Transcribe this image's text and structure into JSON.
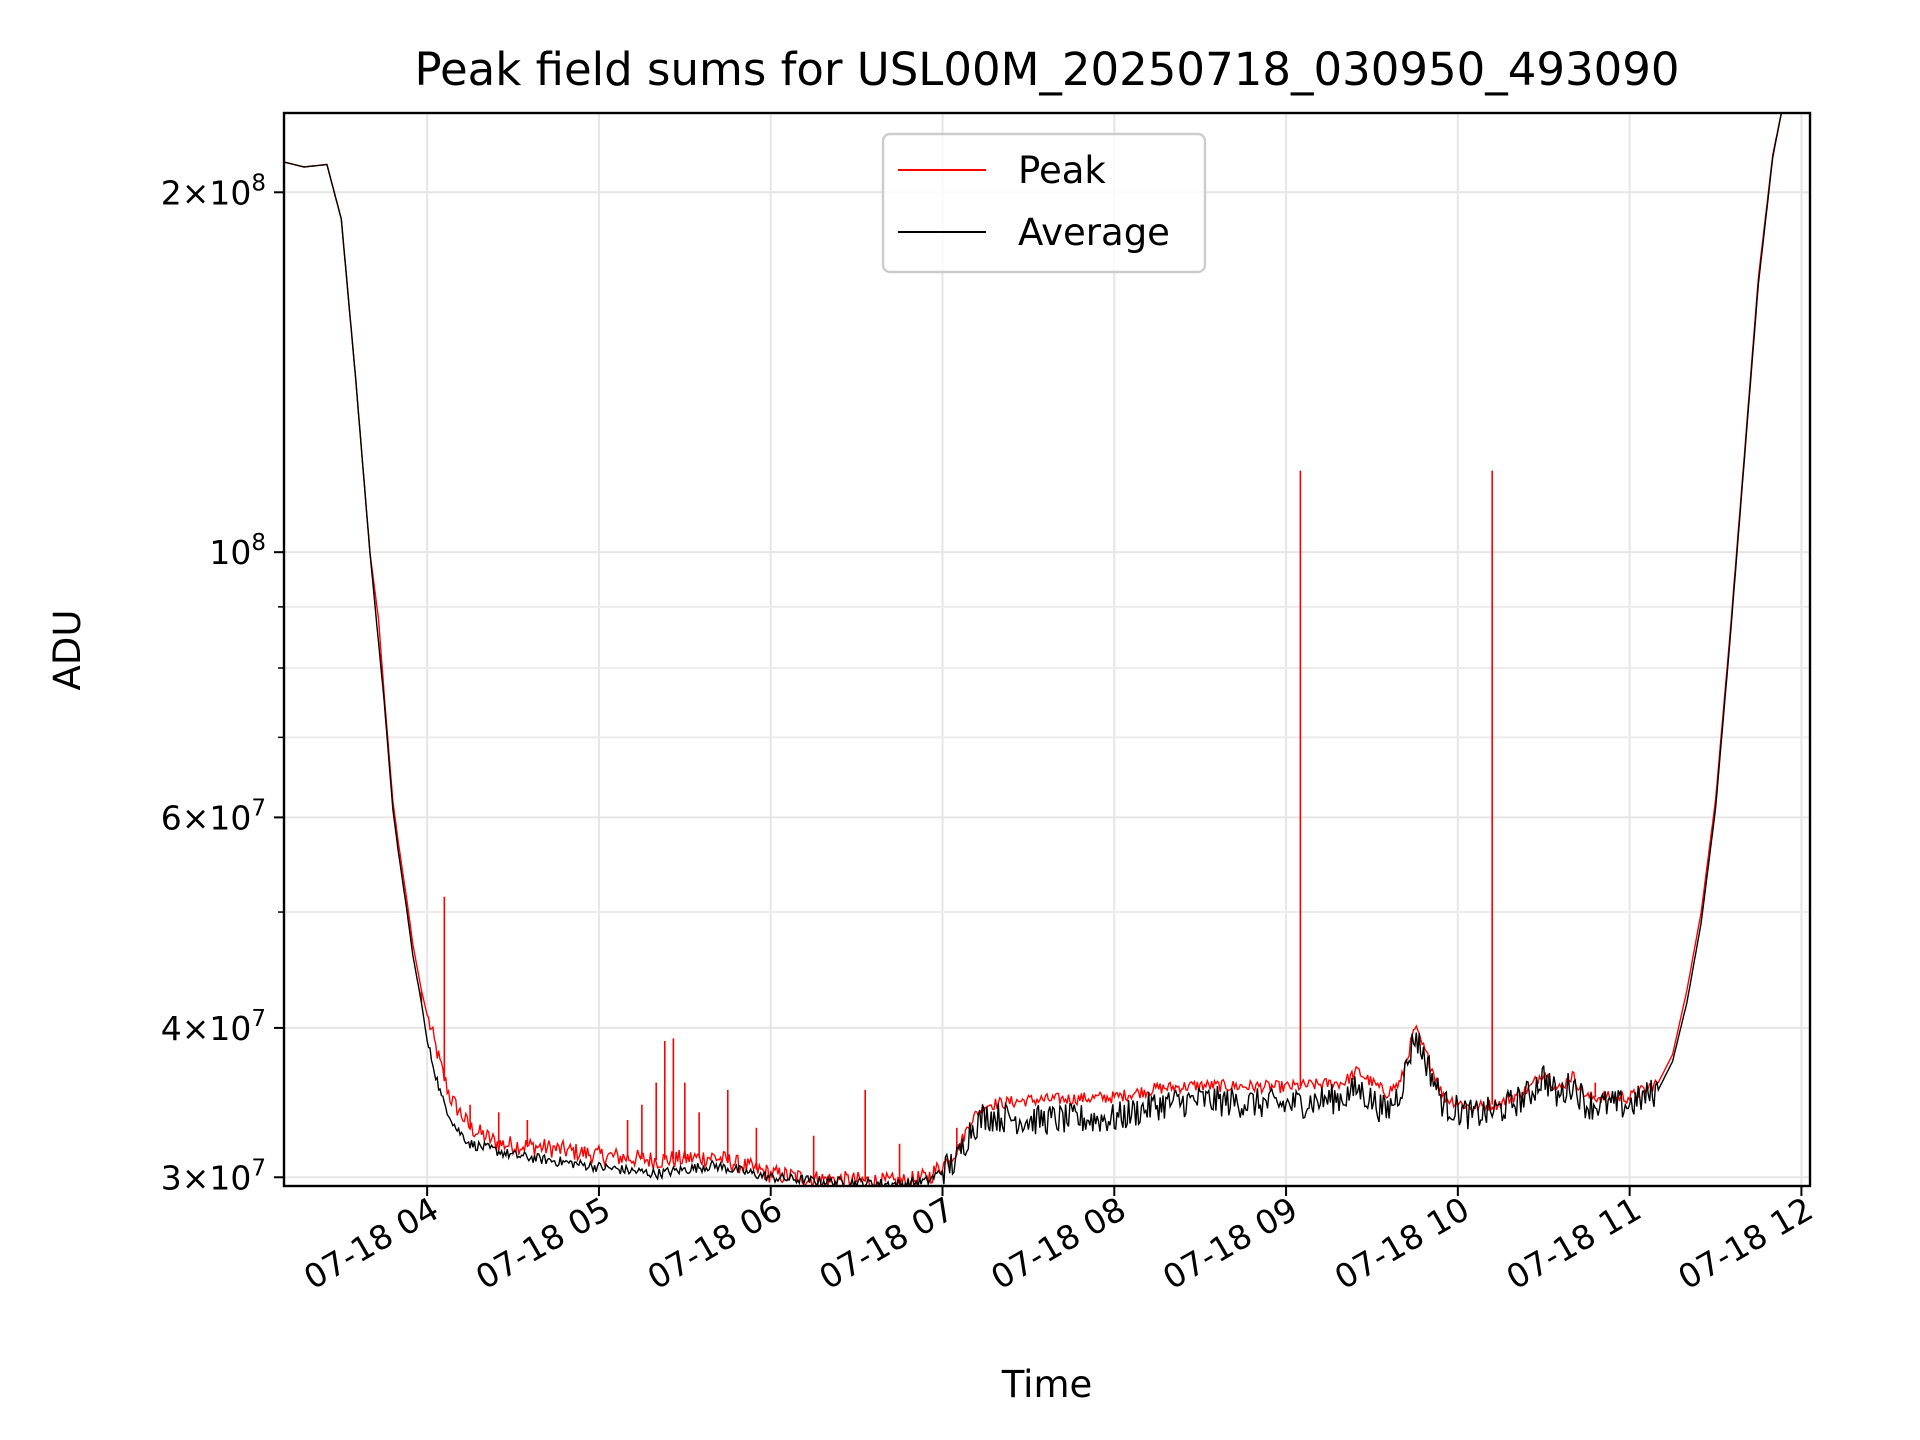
{
  "chart_data": {
    "type": "line",
    "title": "Peak field sums for USL00M_20250718_030950_493090",
    "xlabel": "Time",
    "ylabel": "ADU",
    "yscale": "log",
    "ylim": [
      29500000,
      233000000
    ],
    "xlim": [
      "2025-07-18T03:10",
      "2025-07-18T12:03"
    ],
    "grid": true,
    "legend": "upper center",
    "x_ticks": [
      {
        "value": "2025-07-18T04:00",
        "label": "07-18 04"
      },
      {
        "value": "2025-07-18T05:00",
        "label": "07-18 05"
      },
      {
        "value": "2025-07-18T06:00",
        "label": "07-18 06"
      },
      {
        "value": "2025-07-18T07:00",
        "label": "07-18 07"
      },
      {
        "value": "2025-07-18T08:00",
        "label": "07-18 08"
      },
      {
        "value": "2025-07-18T09:00",
        "label": "07-18 09"
      },
      {
        "value": "2025-07-18T10:00",
        "label": "07-18 10"
      },
      {
        "value": "2025-07-18T11:00",
        "label": "07-18 11"
      },
      {
        "value": "2025-07-18T12:00",
        "label": "07-18 12"
      }
    ],
    "y_ticks": [
      {
        "value": 30000000,
        "mant": "3",
        "exp": "7"
      },
      {
        "value": 40000000,
        "mant": "4",
        "exp": "7"
      },
      {
        "value": 60000000,
        "mant": "6",
        "exp": "7"
      },
      {
        "value": 100000000,
        "mant": "",
        "exp": "8"
      },
      {
        "value": 200000000,
        "mant": "2",
        "exp": "8"
      }
    ],
    "y_minor_ticks": [
      50000000,
      70000000,
      80000000,
      90000000
    ],
    "series": [
      {
        "name": "Peak",
        "color": "#ff0000",
        "points": [
          [
            "2025-07-18T03:10",
            212000000
          ],
          [
            "2025-07-18T03:17",
            210000000
          ],
          [
            "2025-07-18T03:25",
            211000000
          ],
          [
            "2025-07-18T03:30",
            190000000
          ],
          [
            "2025-07-18T03:35",
            140000000
          ],
          [
            "2025-07-18T03:40",
            100000000
          ],
          [
            "2025-07-18T03:43",
            88000000
          ],
          [
            "2025-07-18T03:45",
            76000000
          ],
          [
            "2025-07-18T03:48",
            62000000
          ],
          [
            "2025-07-18T03:50",
            57000000
          ],
          [
            "2025-07-18T03:53",
            51000000
          ],
          [
            "2025-07-18T03:55",
            47000000
          ],
          [
            "2025-07-18T03:58",
            43000000
          ],
          [
            "2025-07-18T04:00",
            41000000
          ],
          [
            "2025-07-18T04:05",
            37000000
          ],
          [
            "2025-07-18T04:08",
            35000000
          ],
          [
            "2025-07-18T04:15",
            33000000
          ],
          [
            "2025-07-18T04:25",
            32000000
          ],
          [
            "2025-07-18T04:40",
            31800000
          ],
          [
            "2025-07-18T05:00",
            31300000
          ],
          [
            "2025-07-18T05:20",
            31000000
          ],
          [
            "2025-07-18T05:40",
            31200000
          ],
          [
            "2025-07-18T06:00",
            30200000
          ],
          [
            "2025-07-18T06:15",
            29900000
          ],
          [
            "2025-07-18T06:30",
            29800000
          ],
          [
            "2025-07-18T06:45",
            29700000
          ],
          [
            "2025-07-18T06:55",
            30000000
          ],
          [
            "2025-07-18T07:05",
            31500000
          ],
          [
            "2025-07-18T07:10",
            33500000
          ],
          [
            "2025-07-18T07:15",
            34500000
          ],
          [
            "2025-07-18T07:30",
            34800000
          ],
          [
            "2025-07-18T08:00",
            35000000
          ],
          [
            "2025-07-18T08:15",
            35600000
          ],
          [
            "2025-07-18T08:30",
            35800000
          ],
          [
            "2025-07-18T09:00",
            35700000
          ],
          [
            "2025-07-18T09:20",
            36000000
          ],
          [
            "2025-07-18T09:25",
            36800000
          ],
          [
            "2025-07-18T09:30",
            36000000
          ],
          [
            "2025-07-18T09:35",
            35300000
          ],
          [
            "2025-07-18T09:40",
            36000000
          ],
          [
            "2025-07-18T09:45",
            40000000
          ],
          [
            "2025-07-18T09:50",
            37500000
          ],
          [
            "2025-07-18T09:55",
            35000000
          ],
          [
            "2025-07-18T10:05",
            34300000
          ],
          [
            "2025-07-18T10:15",
            34600000
          ],
          [
            "2025-07-18T10:25",
            35600000
          ],
          [
            "2025-07-18T10:30",
            36800000
          ],
          [
            "2025-07-18T10:35",
            35500000
          ],
          [
            "2025-07-18T10:40",
            36500000
          ],
          [
            "2025-07-18T10:45",
            35000000
          ],
          [
            "2025-07-18T11:00",
            35000000
          ],
          [
            "2025-07-18T11:10",
            36000000
          ],
          [
            "2025-07-18T11:15",
            38000000
          ],
          [
            "2025-07-18T11:20",
            43000000
          ],
          [
            "2025-07-18T11:25",
            50000000
          ],
          [
            "2025-07-18T11:30",
            62000000
          ],
          [
            "2025-07-18T11:35",
            85000000
          ],
          [
            "2025-07-18T11:40",
            120000000
          ],
          [
            "2025-07-18T11:45",
            170000000
          ],
          [
            "2025-07-18T11:50",
            215000000
          ],
          [
            "2025-07-18T11:53",
            233000000
          ]
        ],
        "spikes": [
          [
            "2025-07-18T03:43",
            88000000
          ],
          [
            "2025-07-18T03:58",
            42000000
          ],
          [
            "2025-07-18T04:00",
            41000000
          ],
          [
            "2025-07-18T04:06",
            51500000
          ],
          [
            "2025-07-18T04:15",
            34500000
          ],
          [
            "2025-07-18T04:25",
            34000000
          ],
          [
            "2025-07-18T04:35",
            33500000
          ],
          [
            "2025-07-18T05:10",
            33500000
          ],
          [
            "2025-07-18T05:15",
            34500000
          ],
          [
            "2025-07-18T05:20",
            36000000
          ],
          [
            "2025-07-18T05:23",
            39000000
          ],
          [
            "2025-07-18T05:26",
            39200000
          ],
          [
            "2025-07-18T05:30",
            36000000
          ],
          [
            "2025-07-18T05:35",
            34000000
          ],
          [
            "2025-07-18T05:45",
            35500000
          ],
          [
            "2025-07-18T05:55",
            33000000
          ],
          [
            "2025-07-18T06:15",
            32500000
          ],
          [
            "2025-07-18T06:33",
            35500000
          ],
          [
            "2025-07-18T06:45",
            32000000
          ],
          [
            "2025-07-18T07:05",
            33000000
          ],
          [
            "2025-07-18T09:05",
            117000000
          ],
          [
            "2025-07-18T10:12",
            117000000
          ],
          [
            "2025-07-18T10:48",
            36000000
          ]
        ]
      },
      {
        "name": "Average",
        "color": "#000000",
        "points": [
          [
            "2025-07-18T03:10",
            212000000
          ],
          [
            "2025-07-18T03:17",
            210000000
          ],
          [
            "2025-07-18T03:25",
            211000000
          ],
          [
            "2025-07-18T03:30",
            190000000
          ],
          [
            "2025-07-18T03:35",
            140000000
          ],
          [
            "2025-07-18T03:40",
            100000000
          ],
          [
            "2025-07-18T03:45",
            75000000
          ],
          [
            "2025-07-18T03:48",
            61000000
          ],
          [
            "2025-07-18T03:50",
            56000000
          ],
          [
            "2025-07-18T03:53",
            50000000
          ],
          [
            "2025-07-18T03:55",
            46000000
          ],
          [
            "2025-07-18T03:58",
            42000000
          ],
          [
            "2025-07-18T04:00",
            39000000
          ],
          [
            "2025-07-18T04:05",
            35000000
          ],
          [
            "2025-07-18T04:10",
            33000000
          ],
          [
            "2025-07-18T04:15",
            32000000
          ],
          [
            "2025-07-18T04:30",
            31300000
          ],
          [
            "2025-07-18T05:00",
            30600000
          ],
          [
            "2025-07-18T05:20",
            30200000
          ],
          [
            "2025-07-18T05:40",
            30700000
          ],
          [
            "2025-07-18T06:00",
            30000000
          ],
          [
            "2025-07-18T06:15",
            29800000
          ],
          [
            "2025-07-18T06:30",
            29700000
          ],
          [
            "2025-07-18T06:45",
            29600000
          ],
          [
            "2025-07-18T06:55",
            29800000
          ],
          [
            "2025-07-18T07:05",
            31000000
          ],
          [
            "2025-07-18T07:10",
            33000000
          ],
          [
            "2025-07-18T07:15",
            33800000
          ],
          [
            "2025-07-18T07:30",
            33500000
          ],
          [
            "2025-07-18T08:00",
            33600000
          ],
          [
            "2025-07-18T08:15",
            34500000
          ],
          [
            "2025-07-18T08:30",
            34800000
          ],
          [
            "2025-07-18T09:00",
            34500000
          ],
          [
            "2025-07-18T09:20",
            35000000
          ],
          [
            "2025-07-18T09:25",
            35600000
          ],
          [
            "2025-07-18T09:30",
            34800000
          ],
          [
            "2025-07-18T09:35",
            34000000
          ],
          [
            "2025-07-18T09:40",
            35500000
          ],
          [
            "2025-07-18T09:45",
            39500000
          ],
          [
            "2025-07-18T09:50",
            37000000
          ],
          [
            "2025-07-18T09:55",
            34500000
          ],
          [
            "2025-07-18T10:05",
            33800000
          ],
          [
            "2025-07-18T10:15",
            34200000
          ],
          [
            "2025-07-18T10:25",
            35200000
          ],
          [
            "2025-07-18T10:30",
            36500000
          ],
          [
            "2025-07-18T10:35",
            35000000
          ],
          [
            "2025-07-18T10:40",
            36000000
          ],
          [
            "2025-07-18T10:45",
            34500000
          ],
          [
            "2025-07-18T11:00",
            34500000
          ],
          [
            "2025-07-18T11:10",
            35500000
          ],
          [
            "2025-07-18T11:15",
            37500000
          ],
          [
            "2025-07-18T11:20",
            42000000
          ],
          [
            "2025-07-18T11:25",
            49000000
          ],
          [
            "2025-07-18T11:30",
            61000000
          ],
          [
            "2025-07-18T11:35",
            84000000
          ],
          [
            "2025-07-18T11:40",
            119000000
          ],
          [
            "2025-07-18T11:45",
            168000000
          ],
          [
            "2025-07-18T11:50",
            214000000
          ],
          [
            "2025-07-18T11:53",
            233000000
          ]
        ]
      }
    ]
  }
}
